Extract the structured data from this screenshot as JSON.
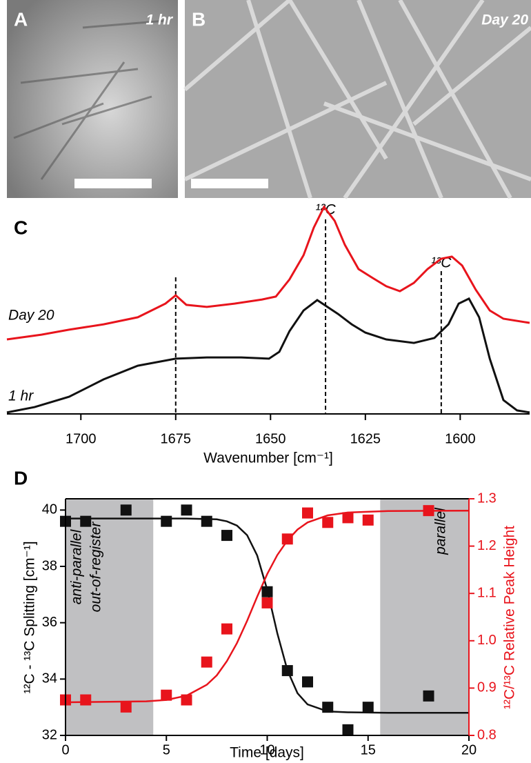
{
  "images": [
    {
      "letter": "A",
      "label": "1 hr"
    },
    {
      "letter": "B",
      "label": "Day 20"
    }
  ],
  "chart_data": [
    {
      "type": "line",
      "letter": "C",
      "xlabel": "Wavenumber [cm⁻¹]",
      "xlim": [
        1719.5,
        1581.7
      ],
      "ylim": [
        0,
        100
      ],
      "xticks": [
        1700,
        1675,
        1650,
        1625,
        1600
      ],
      "vlines": [
        1675,
        1635.5,
        1605
      ],
      "annotations": [
        {
          "x": 1635.5,
          "text": "¹²C"
        },
        {
          "x": 1605,
          "text": "¹³C"
        }
      ],
      "series": [
        {
          "name": "Day 20",
          "color": "#e8141c",
          "x": [
            1719.5,
            1710.4,
            1703.1,
            1694.0,
            1685.0,
            1677.7,
            1675.0,
            1672.2,
            1666.8,
            1659.5,
            1652.2,
            1648.6,
            1645.0,
            1641.3,
            1638.6,
            1635.9,
            1633.1,
            1630.4,
            1626.8,
            1623.1,
            1619.5,
            1615.9,
            1612.2,
            1608.6,
            1605.0,
            1602.2,
            1599.5,
            1595.9,
            1592.2,
            1588.6,
            1581.7
          ],
          "values": [
            36,
            38.3,
            40.7,
            43.3,
            46.7,
            53.3,
            57.3,
            52.7,
            51.7,
            53.3,
            55.3,
            56.7,
            65,
            76.7,
            90,
            100,
            93.3,
            81.7,
            70,
            65.7,
            61.7,
            59.3,
            63.3,
            70,
            75,
            76,
            71.7,
            60,
            50,
            46,
            44
          ]
        },
        {
          "name": "1 hr",
          "color": "#111111",
          "x": [
            1719.5,
            1712.2,
            1703.1,
            1694.0,
            1685.0,
            1675.0,
            1666.8,
            1657.7,
            1650.4,
            1647.7,
            1645.0,
            1641.3,
            1637.7,
            1635.0,
            1632.2,
            1628.6,
            1625.0,
            1619.5,
            1612.2,
            1606.8,
            1603.1,
            1600.4,
            1597.7,
            1595.0,
            1592.2,
            1588.6,
            1585.0,
            1581.7
          ],
          "values": [
            0.7,
            3.3,
            8.3,
            16.7,
            23.3,
            26.7,
            27.3,
            27.3,
            26.7,
            30,
            40,
            50,
            55,
            51.7,
            48.3,
            43.3,
            39.3,
            36,
            34.3,
            36.7,
            43.3,
            53.3,
            55.7,
            46.7,
            26.7,
            6.7,
            1.7,
            0.7
          ]
        }
      ]
    },
    {
      "type": "scatter",
      "letter": "D",
      "xlabel": "Time [days]",
      "ylabel": "¹²C - ¹³C Splitting [cm⁻¹]",
      "y2label": "¹²C/¹³C Relative Peak Height",
      "xlim": [
        0,
        20
      ],
      "ylim": [
        32,
        40.4
      ],
      "y2lim": [
        0.8,
        1.3
      ],
      "xticks": [
        0,
        5,
        10,
        15,
        20
      ],
      "yticks": [
        32,
        34,
        36,
        38,
        40
      ],
      "y2ticks": [
        0.8,
        0.9,
        {
          "value": 1,
          "label": "1.0"
        },
        1.1,
        1.2,
        1.3
      ],
      "regions": [
        {
          "x": [
            0,
            4.35
          ],
          "text": [
            "anti-parallel",
            "out-of-register"
          ]
        },
        {
          "x": [
            15.6,
            20
          ],
          "text": [
            "parallel"
          ]
        }
      ],
      "series": [
        {
          "style": "markers",
          "color": "#111111",
          "x": [
            0,
            1,
            3,
            5,
            6,
            7,
            8,
            10,
            11,
            12,
            13,
            14,
            15,
            18
          ],
          "values": [
            39.6,
            39.6,
            40,
            39.6,
            40,
            39.6,
            39.1,
            37.1,
            34.3,
            33.9,
            33.0,
            32.2,
            33.0,
            33.4
          ]
        },
        {
          "style": "markers",
          "color": "#e8141c",
          "axis": "y2",
          "x": [
            0,
            1,
            3,
            5,
            6,
            7,
            8,
            10,
            11,
            12,
            13,
            14,
            15,
            18
          ],
          "values": [
            0.875,
            0.875,
            0.86,
            0.885,
            0.875,
            0.955,
            1.025,
            1.08,
            1.215,
            1.27,
            1.25,
            1.26,
            1.255,
            1.275
          ]
        },
        {
          "style": "line",
          "color": "#111111",
          "x": [
            0,
            4,
            5,
            6,
            7,
            7.5,
            8,
            8.5,
            9,
            9.5,
            10,
            10.5,
            11,
            11.5,
            12,
            13,
            14,
            16,
            20
          ],
          "values": [
            39.7,
            39.7,
            39.7,
            39.7,
            39.68,
            39.67,
            39.6,
            39.45,
            39.11,
            38.39,
            37.17,
            35.63,
            34.31,
            33.5,
            33.1,
            32.85,
            32.82,
            32.8,
            32.8
          ]
        },
        {
          "style": "line",
          "color": "#e8141c",
          "axis": "y2",
          "x": [
            0,
            4,
            5,
            6,
            7,
            7.5,
            8,
            8.5,
            9,
            9.5,
            10,
            10.5,
            11,
            11.5,
            12,
            13,
            14,
            16,
            20
          ],
          "values": [
            0.87,
            0.872,
            0.875,
            0.884,
            0.907,
            0.927,
            0.957,
            0.995,
            1.042,
            1.093,
            1.141,
            1.181,
            1.212,
            1.235,
            1.25,
            1.265,
            1.271,
            1.274,
            1.275
          ]
        }
      ]
    }
  ]
}
